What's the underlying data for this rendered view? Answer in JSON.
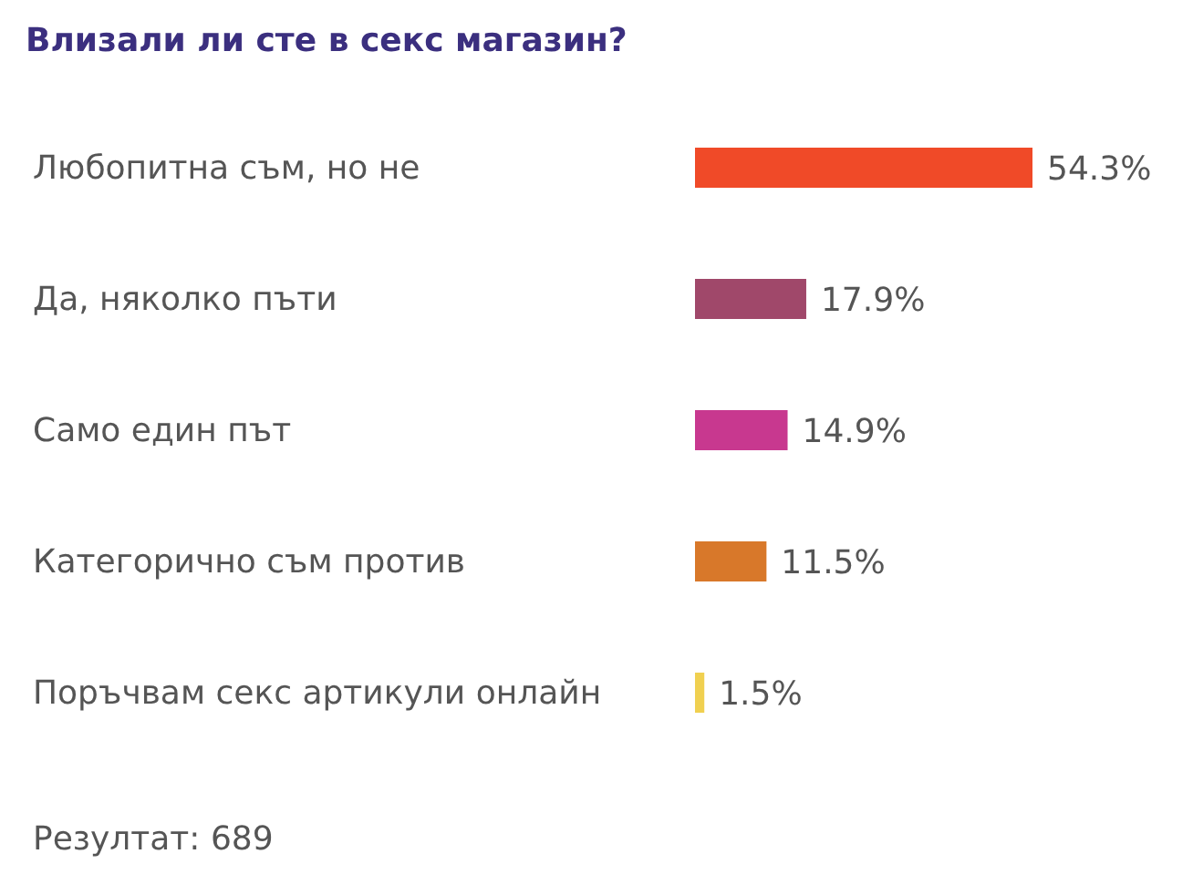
{
  "chart_data": {
    "type": "bar",
    "orientation": "horizontal",
    "title": "Влизали ли сте в секс магазин?",
    "categories": [
      "Любопитна съм, но не",
      "Да, няколко пъти",
      "Само един път",
      "Категорично съм против",
      "Поръчвам секс артикули онлайн"
    ],
    "values": [
      54.3,
      17.9,
      14.9,
      11.5,
      1.5
    ],
    "colors": [
      "#f04a28",
      "#a0486a",
      "#c8388f",
      "#d8782a",
      "#f0d050"
    ],
    "value_labels": [
      "54.3%",
      "17.9%",
      "14.9%",
      "11.5%",
      "1.5%"
    ],
    "annotations": [
      "Резултат: 689"
    ],
    "legend": false,
    "grid": false
  }
}
